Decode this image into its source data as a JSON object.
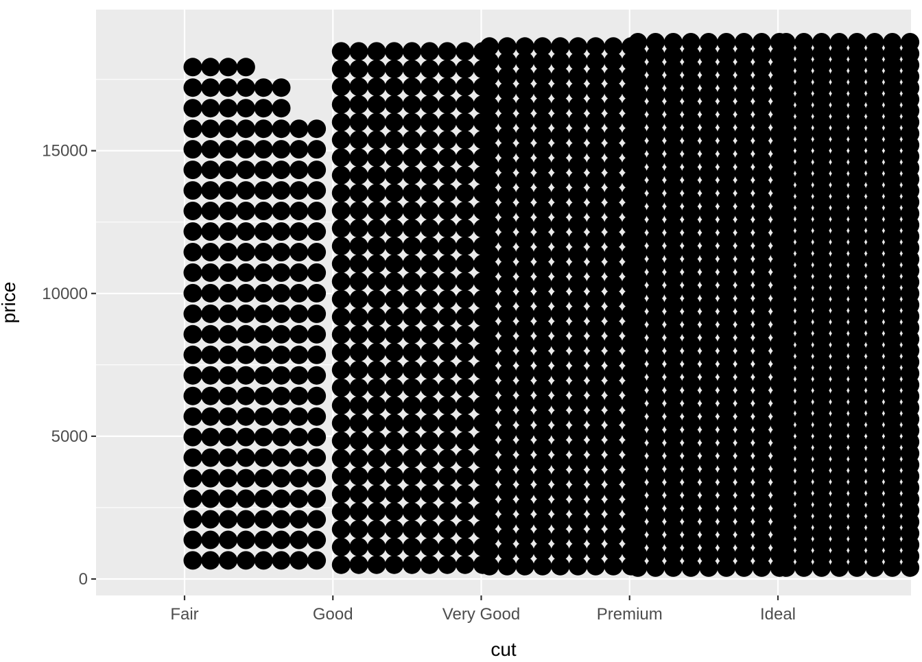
{
  "chart_data": {
    "type": "scatter",
    "xlabel": "cut",
    "ylabel": "price",
    "categories": [
      "Fair",
      "Good",
      "Very Good",
      "Premium",
      "Ideal"
    ],
    "ylim": [
      -400,
      19500
    ],
    "y_ticks": [
      0,
      5000,
      10000,
      15000
    ],
    "y_tick_labels": [
      "0",
      "5000",
      "10000",
      "15000"
    ],
    "grid": true,
    "legend": "none",
    "point_color": "#000000",
    "panel_background": "#ebebeb",
    "gridline_color": "#ffffff",
    "point_clouds": [
      {
        "category": "Fair",
        "price_min": 650,
        "price_max": 18600,
        "price_step": 720,
        "columns": 8,
        "column_caps": [
          18600,
          18600,
          18600,
          18600,
          17300,
          17300,
          16000,
          16000
        ]
      },
      {
        "category": "Good",
        "price_min": 500,
        "price_max": 18700,
        "price_step": 620,
        "columns": 9,
        "column_caps": [
          18700,
          18700,
          18700,
          18700,
          18700,
          18700,
          18700,
          18700,
          18700
        ]
      },
      {
        "category": "Very Good",
        "price_min": 450,
        "price_max": 18700,
        "price_step": 520,
        "columns": 9,
        "column_caps": [
          18700,
          18700,
          18700,
          18700,
          18700,
          18700,
          18700,
          18700,
          18700
        ]
      },
      {
        "category": "Premium",
        "price_min": 400,
        "price_max": 18800,
        "price_step": 460,
        "columns": 9,
        "column_caps": [
          18800,
          18800,
          18800,
          18800,
          18800,
          18800,
          18800,
          18800,
          18800
        ]
      },
      {
        "category": "Ideal",
        "price_min": 400,
        "price_max": 18800,
        "price_step": 400,
        "columns": 9,
        "column_caps": [
          18800,
          18800,
          18800,
          18800,
          18800,
          18800,
          18800,
          18800,
          18800
        ]
      }
    ]
  }
}
